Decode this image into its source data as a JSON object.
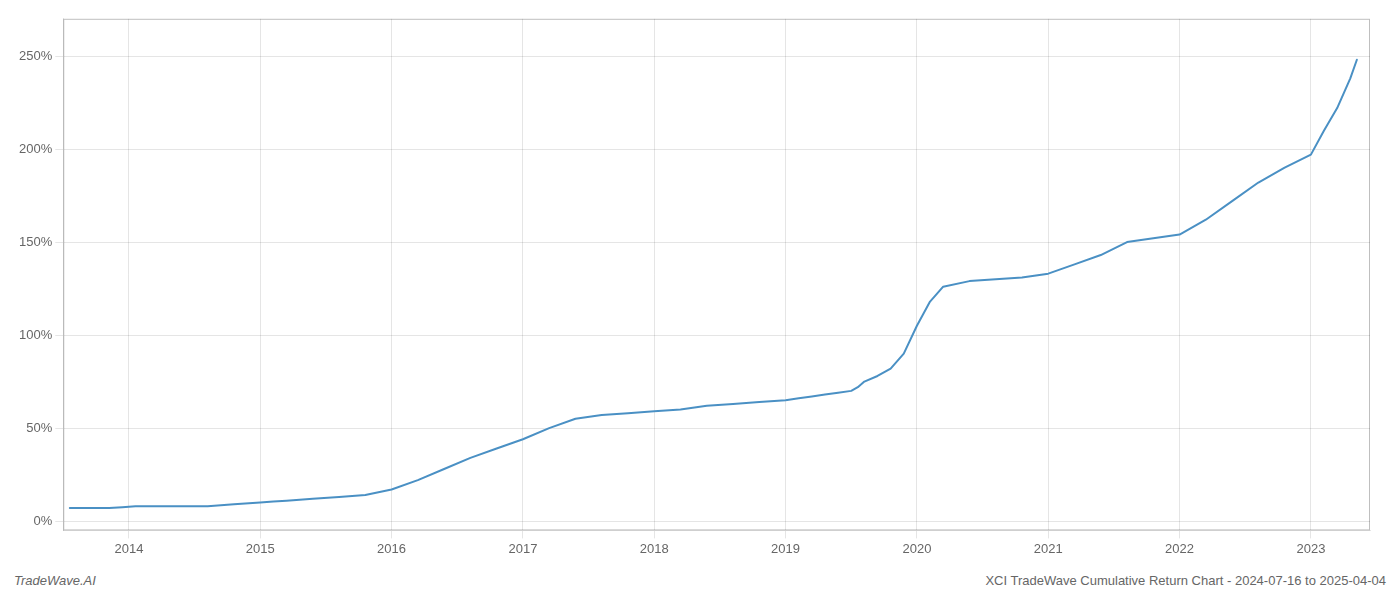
{
  "chart_data": {
    "type": "line",
    "annotations": [
      "TradeWave.AI",
      "XCI TradeWave Cumulative Return Chart - 2024-07-16 to 2025-04-04"
    ],
    "color": "#4a90c4",
    "x": [
      2013.55,
      2013.65,
      2013.75,
      2013.85,
      2013.95,
      2014.05,
      2014.2,
      2014.4,
      2014.6,
      2014.8,
      2015.0,
      2015.1,
      2015.2,
      2015.4,
      2015.6,
      2015.8,
      2016.0,
      2016.2,
      2016.4,
      2016.6,
      2016.8,
      2017.0,
      2017.2,
      2017.4,
      2017.6,
      2017.8,
      2018.0,
      2018.2,
      2018.4,
      2018.6,
      2018.8,
      2019.0,
      2019.1,
      2019.2,
      2019.3,
      2019.4,
      2019.5,
      2019.55,
      2019.6,
      2019.7,
      2019.8,
      2019.9,
      2020.0,
      2020.1,
      2020.2,
      2020.4,
      2020.6,
      2020.8,
      2021.0,
      2021.2,
      2021.4,
      2021.6,
      2021.8,
      2022.0,
      2022.2,
      2022.4,
      2022.6,
      2022.8,
      2023.0,
      2023.1,
      2023.2,
      2023.3,
      2023.35
    ],
    "values": [
      7,
      7,
      7,
      7,
      7.5,
      8,
      8,
      8,
      8,
      9,
      10,
      10.5,
      11,
      12,
      13,
      14,
      17,
      22,
      28,
      34,
      39,
      44,
      50,
      55,
      57,
      58,
      59,
      60,
      62,
      63,
      64,
      65,
      66,
      67,
      68,
      69,
      70,
      72,
      75,
      78,
      82,
      90,
      105,
      118,
      126,
      129,
      130,
      131,
      133,
      138,
      143,
      150,
      152,
      154,
      162,
      172,
      182,
      190,
      197,
      210,
      222,
      238,
      248
    ],
    "xlim": [
      2013.5,
      2023.45
    ],
    "xticks": [
      2014,
      2015,
      2016,
      2017,
      2018,
      2019,
      2020,
      2021,
      2022,
      2023
    ],
    "ylim": [
      -5,
      270
    ],
    "yticks": [
      {
        "value": 0,
        "label": "0%"
      },
      {
        "value": 50,
        "label": "50%"
      },
      {
        "value": 100,
        "label": "100%"
      },
      {
        "value": 150,
        "label": "150%"
      },
      {
        "value": 200,
        "label": "200%"
      },
      {
        "value": 250,
        "label": "250%"
      }
    ],
    "grid": true
  }
}
